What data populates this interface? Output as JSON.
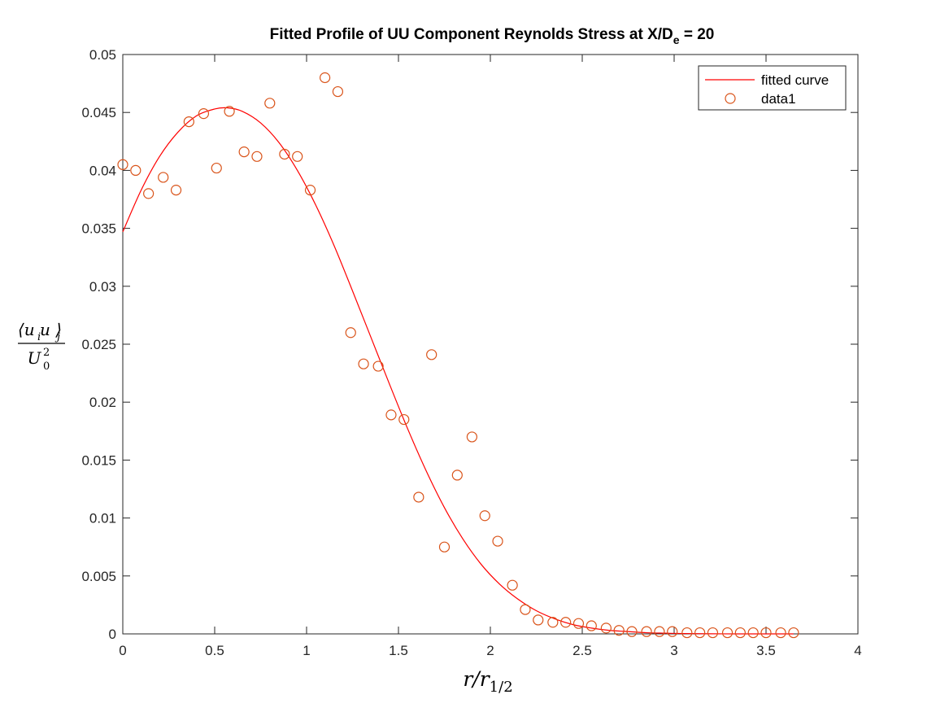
{
  "chart_data": {
    "type": "scatter",
    "title": "Fitted Profile of UU Component Reynolds Stress at X/D",
    "title_subscript": "e",
    "title_suffix": " = 20",
    "xlabel": "r/r",
    "xlabel_subscript": "1/2",
    "ylabel_numerator": "⟨u u ⟩",
    "ylabel_numerator_sub_1": "i",
    "ylabel_numerator_sub_2": "j",
    "ylabel_denominator": "U",
    "ylabel_denominator_sup": "2",
    "ylabel_denominator_sub": "0",
    "xlim": [
      0,
      4
    ],
    "ylim": [
      0,
      0.05
    ],
    "x_ticks": [
      0,
      0.5,
      1,
      1.5,
      2,
      2.5,
      3,
      3.5,
      4
    ],
    "x_tick_labels": [
      "0",
      "0.5",
      "1",
      "1.5",
      "2",
      "2.5",
      "3",
      "3.5",
      "4"
    ],
    "y_ticks": [
      0,
      0.005,
      0.01,
      0.015,
      0.02,
      0.025,
      0.03,
      0.035,
      0.04,
      0.045,
      0.05
    ],
    "y_tick_labels": [
      "0",
      "0.005",
      "0.01",
      "0.015",
      "0.02",
      "0.025",
      "0.03",
      "0.035",
      "0.04",
      "0.045",
      "0.05"
    ],
    "grid": false,
    "legend_position": "top-right",
    "series": [
      {
        "name": "fitted curve",
        "kind": "line",
        "color": "#ff0000",
        "x": [
          0,
          0.1,
          0.2,
          0.3,
          0.4,
          0.5,
          0.57,
          0.65,
          0.75,
          0.85,
          0.95,
          1.05,
          1.15,
          1.25,
          1.35,
          1.45,
          1.55,
          1.65,
          1.75,
          1.85,
          1.95,
          2.05,
          2.15,
          2.25,
          2.35,
          2.45,
          2.55,
          2.65,
          2.75,
          2.85,
          2.95,
          3.05,
          3.2,
          3.4,
          3.6,
          3.65
        ],
        "y": [
          0.0347,
          0.0383,
          0.0412,
          0.0433,
          0.0447,
          0.0453,
          0.0454,
          0.0451,
          0.0441,
          0.0424,
          0.04,
          0.037,
          0.0335,
          0.0296,
          0.0256,
          0.0216,
          0.0177,
          0.0141,
          0.0109,
          0.0082,
          0.006,
          0.0043,
          0.003,
          0.002,
          0.0013,
          0.0008,
          0.0005,
          0.0003,
          0.0002,
          0.0001,
          6e-05,
          3e-05,
          1e-05,
          0.0,
          0.0,
          0.0
        ]
      },
      {
        "name": "data1",
        "kind": "scatter",
        "color": "#d95319",
        "x": [
          0,
          0.07,
          0.14,
          0.22,
          0.29,
          0.36,
          0.44,
          0.51,
          0.58,
          0.66,
          0.73,
          0.8,
          0.88,
          0.95,
          1.02,
          1.1,
          1.17,
          1.24,
          1.31,
          1.39,
          1.46,
          1.53,
          1.61,
          1.68,
          1.75,
          1.82,
          1.9,
          1.97,
          2.04,
          2.12,
          2.19,
          2.26,
          2.34,
          2.41,
          2.48,
          2.55,
          2.63,
          2.7,
          2.77,
          2.85,
          2.92,
          2.99,
          3.07,
          3.14,
          3.21,
          3.29,
          3.36,
          3.43,
          3.5,
          3.58,
          3.65
        ],
        "y": [
          0.0405,
          0.04,
          0.038,
          0.0394,
          0.0383,
          0.0442,
          0.0449,
          0.0402,
          0.0451,
          0.0416,
          0.0412,
          0.0458,
          0.0414,
          0.0412,
          0.0383,
          0.048,
          0.0468,
          0.026,
          0.0233,
          0.0231,
          0.0189,
          0.0185,
          0.0118,
          0.0241,
          0.0075,
          0.0137,
          0.017,
          0.0102,
          0.008,
          0.0042,
          0.0021,
          0.0012,
          0.001,
          0.001,
          0.0009,
          0.0007,
          0.0005,
          0.0003,
          0.0002,
          0.0002,
          0.0002,
          0.0002,
          0.0001,
          0.0001,
          0.0001,
          0.0001,
          0.0001,
          0.0001,
          0.0001,
          0.0001,
          0.0001
        ]
      }
    ]
  }
}
